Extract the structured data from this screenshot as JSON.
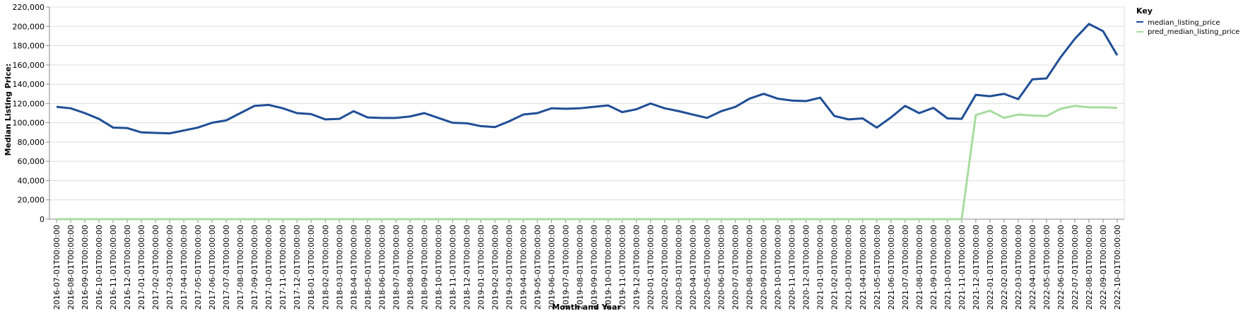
{
  "chart_data": {
    "type": "line",
    "xlabel": "Month and Year",
    "ylabel": "Median Listing Price:",
    "ylim": [
      0,
      220000
    ],
    "yticks": [
      "0",
      "20,000",
      "40,000",
      "60,000",
      "80,000",
      "100,000",
      "120,000",
      "140,000",
      "160,000",
      "180,000",
      "200,000",
      "220,000"
    ],
    "ytick_values": [
      0,
      20000,
      40000,
      60000,
      80000,
      100000,
      120000,
      140000,
      160000,
      180000,
      200000,
      220000
    ],
    "grid": true,
    "legend": {
      "title": "Key",
      "placement": "top-right"
    },
    "x": [
      "2016-07-01T00:00:00",
      "2016-08-01T00:00:00",
      "2016-09-01T00:00:00",
      "2016-10-01T00:00:00",
      "2016-11-01T00:00:00",
      "2016-12-01T00:00:00",
      "2017-01-01T00:00:00",
      "2017-02-01T00:00:00",
      "2017-03-01T00:00:00",
      "2017-04-01T00:00:00",
      "2017-05-01T00:00:00",
      "2017-06-01T00:00:00",
      "2017-07-01T00:00:00",
      "2017-08-01T00:00:00",
      "2017-09-01T00:00:00",
      "2017-10-01T00:00:00",
      "2017-11-01T00:00:00",
      "2017-12-01T00:00:00",
      "2018-01-01T00:00:00",
      "2018-02-01T00:00:00",
      "2018-03-01T00:00:00",
      "2018-04-01T00:00:00",
      "2018-05-01T00:00:00",
      "2018-06-01T00:00:00",
      "2018-07-01T00:00:00",
      "2018-08-01T00:00:00",
      "2018-09-01T00:00:00",
      "2018-10-01T00:00:00",
      "2018-11-01T00:00:00",
      "2018-12-01T00:00:00",
      "2019-01-01T00:00:00",
      "2019-02-01T00:00:00",
      "2019-03-01T00:00:00",
      "2019-04-01T00:00:00",
      "2019-05-01T00:00:00",
      "2019-06-01T00:00:00",
      "2019-07-01T00:00:00",
      "2019-08-01T00:00:00",
      "2019-09-01T00:00:00",
      "2019-10-01T00:00:00",
      "2019-11-01T00:00:00",
      "2019-12-01T00:00:00",
      "2020-01-01T00:00:00",
      "2020-02-01T00:00:00",
      "2020-03-01T00:00:00",
      "2020-04-01T00:00:00",
      "2020-05-01T00:00:00",
      "2020-06-01T00:00:00",
      "2020-07-01T00:00:00",
      "2020-08-01T00:00:00",
      "2020-09-01T00:00:00",
      "2020-10-01T00:00:00",
      "2020-11-01T00:00:00",
      "2020-12-01T00:00:00",
      "2021-01-01T00:00:00",
      "2021-02-01T00:00:00",
      "2021-03-01T00:00:00",
      "2021-04-01T00:00:00",
      "2021-05-01T00:00:00",
      "2021-06-01T00:00:00",
      "2021-07-01T00:00:00",
      "2021-08-01T00:00:00",
      "2021-09-01T00:00:00",
      "2021-10-01T00:00:00",
      "2021-11-01T00:00:00",
      "2021-12-01T00:00:00",
      "2022-01-01T00:00:00",
      "2022-02-01T00:00:00",
      "2022-03-01T00:00:00",
      "2022-04-01T00:00:00",
      "2022-05-01T00:00:00",
      "2022-06-01T00:00:00",
      "2022-07-01T00:00:00",
      "2022-08-01T00:00:00",
      "2022-09-01T00:00:00",
      "2022-10-01T00:00:00"
    ],
    "series": [
      {
        "name": "median_listing_price",
        "color": "#1f4e96",
        "values": [
          116500,
          115000,
          110000,
          104000,
          95000,
          94500,
          90000,
          89500,
          89000,
          92000,
          95000,
          100000,
          102500,
          110000,
          117500,
          118500,
          115000,
          110000,
          109000,
          103500,
          104000,
          112000,
          105500,
          105000,
          105000,
          106500,
          110000,
          105000,
          100000,
          99500,
          96500,
          95500,
          101500,
          108500,
          110000,
          115000,
          114500,
          115000,
          116500,
          118000,
          111000,
          114000,
          120000,
          115000,
          112000,
          108500,
          105000,
          112000,
          116500,
          125000,
          130000,
          125000,
          123000,
          122500,
          126000,
          107000,
          103500,
          104500,
          95000,
          105500,
          117500,
          110000,
          115500,
          104500,
          104000,
          129000,
          127500,
          130000,
          124500,
          145000,
          146000,
          168000,
          187000,
          202500,
          195000,
          170000
        ]
      },
      {
        "name": "pred_median_listing_price",
        "color": "#a8dca0",
        "values": [
          0,
          0,
          0,
          0,
          0,
          0,
          0,
          0,
          0,
          0,
          0,
          0,
          0,
          0,
          0,
          0,
          0,
          0,
          0,
          0,
          0,
          0,
          0,
          0,
          0,
          0,
          0,
          0,
          0,
          0,
          0,
          0,
          0,
          0,
          0,
          0,
          0,
          0,
          0,
          0,
          0,
          0,
          0,
          0,
          0,
          0,
          0,
          0,
          0,
          0,
          0,
          0,
          0,
          0,
          0,
          0,
          0,
          0,
          0,
          0,
          0,
          0,
          0,
          0,
          0,
          108000,
          112500,
          105000,
          108500,
          107500,
          107000,
          114500,
          117500,
          116000,
          116000,
          115500
        ]
      }
    ]
  }
}
